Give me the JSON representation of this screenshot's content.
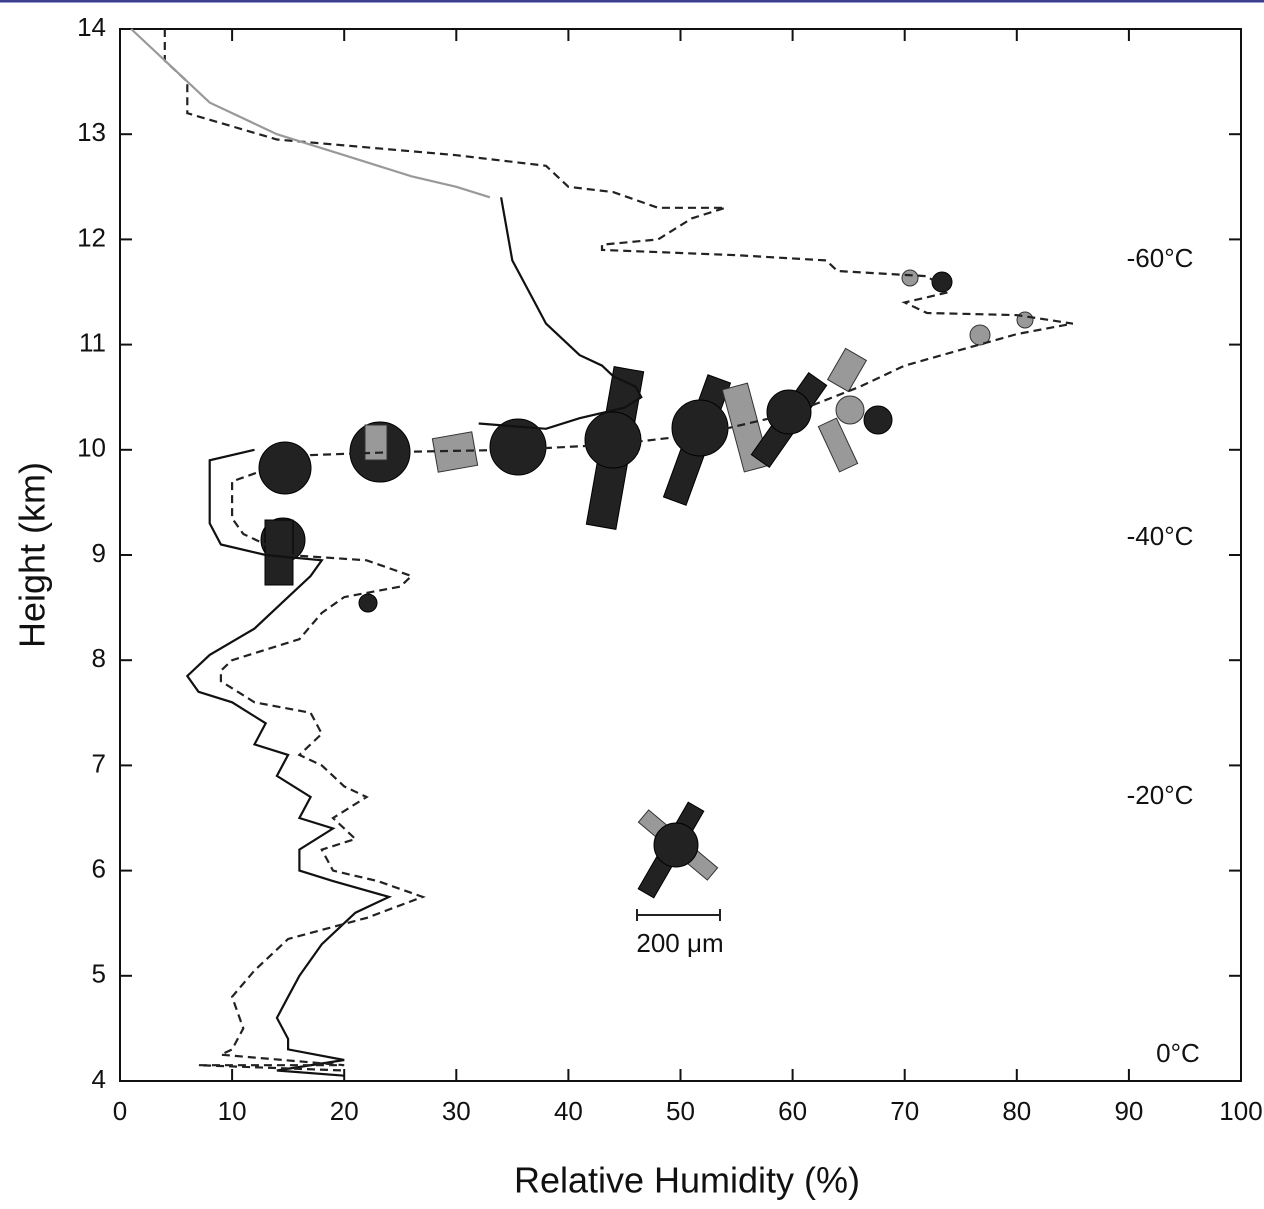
{
  "chart_data": {
    "type": "line",
    "xlabel": "Relative Humidity (%)",
    "ylabel": "Height  (km)",
    "xlim": [
      0,
      100
    ],
    "xticks": [
      0,
      10,
      20,
      30,
      40,
      50,
      60,
      70,
      80,
      90,
      100
    ],
    "ylim": [
      4,
      14
    ],
    "yticks": [
      4,
      5,
      6,
      7,
      8,
      9,
      10,
      11,
      12,
      13,
      14
    ],
    "annotations": [
      "-60°C",
      "-40°C",
      "-20°C",
      "0°C",
      "200 μm"
    ],
    "series": [
      {
        "color": "#111111",
        "dash": "none",
        "x": [
          34,
          35,
          37,
          38,
          41,
          43,
          44,
          46,
          46.5,
          45,
          41,
          38,
          32
        ],
        "values": [
          12.4,
          11.8,
          11.4,
          11.2,
          10.9,
          10.8,
          10.7,
          10.6,
          10.5,
          10.4,
          10.3,
          10.2,
          10.25
        ]
      },
      {
        "color": "#111111",
        "dash": "none",
        "x": [
          12,
          8,
          8,
          9,
          13,
          18,
          17,
          15,
          12,
          8,
          6,
          7,
          10,
          13,
          12,
          15,
          14,
          17,
          16,
          19,
          16,
          16,
          19,
          24,
          21,
          18,
          16,
          15,
          14,
          15,
          15,
          20,
          14,
          20
        ],
        "values": [
          10,
          9.9,
          9.3,
          9.1,
          9.0,
          8.95,
          8.8,
          8.6,
          8.3,
          8.05,
          7.85,
          7.7,
          7.6,
          7.4,
          7.2,
          7.1,
          6.9,
          6.7,
          6.5,
          6.4,
          6.2,
          6.0,
          5.9,
          5.75,
          5.6,
          5.3,
          5.0,
          4.8,
          4.6,
          4.4,
          4.3,
          4.2,
          4.1,
          4.05
        ]
      },
      {
        "color": "#222222",
        "dash": "8 5",
        "x": [
          4,
          4,
          6,
          6,
          14,
          30,
          38,
          40,
          44,
          48,
          54,
          51,
          48,
          43,
          43,
          55,
          63,
          64,
          72,
          74,
          70,
          72,
          80,
          85,
          80,
          70,
          66,
          60,
          52,
          44,
          35,
          25,
          17,
          14,
          10,
          10,
          11,
          15,
          22,
          26,
          25,
          20,
          18,
          16,
          10,
          9,
          9,
          12,
          17,
          18,
          16,
          18,
          20,
          22,
          19,
          21,
          18,
          19,
          23,
          27,
          22,
          15,
          12,
          10,
          11,
          10,
          9,
          20,
          7,
          20
        ],
        "values": [
          14,
          13.7,
          13.5,
          13.2,
          12.95,
          12.8,
          12.7,
          12.5,
          12.45,
          12.3,
          12.3,
          12.2,
          12,
          11.95,
          11.9,
          11.85,
          11.8,
          11.7,
          11.65,
          11.5,
          11.4,
          11.3,
          11.28,
          11.2,
          11.1,
          10.8,
          10.6,
          10.35,
          10.15,
          10.05,
          10.0,
          9.98,
          9.95,
          9.85,
          9.7,
          9.35,
          9.2,
          9.0,
          8.95,
          8.8,
          8.7,
          8.6,
          8.45,
          8.2,
          8.0,
          7.9,
          7.8,
          7.6,
          7.5,
          7.3,
          7.1,
          7.0,
          6.8,
          6.7,
          6.5,
          6.3,
          6.2,
          6.0,
          5.9,
          5.75,
          5.55,
          5.35,
          5.05,
          4.8,
          4.5,
          4.3,
          4.25,
          4.15,
          4.15,
          4.1
        ]
      },
      {
        "color": "#999999",
        "dash": "none",
        "x": [
          1,
          5,
          8,
          14,
          20,
          26,
          30,
          33
        ],
        "values": [
          14,
          13.6,
          13.3,
          13.0,
          12.8,
          12.6,
          12.5,
          12.4
        ]
      }
    ]
  }
}
